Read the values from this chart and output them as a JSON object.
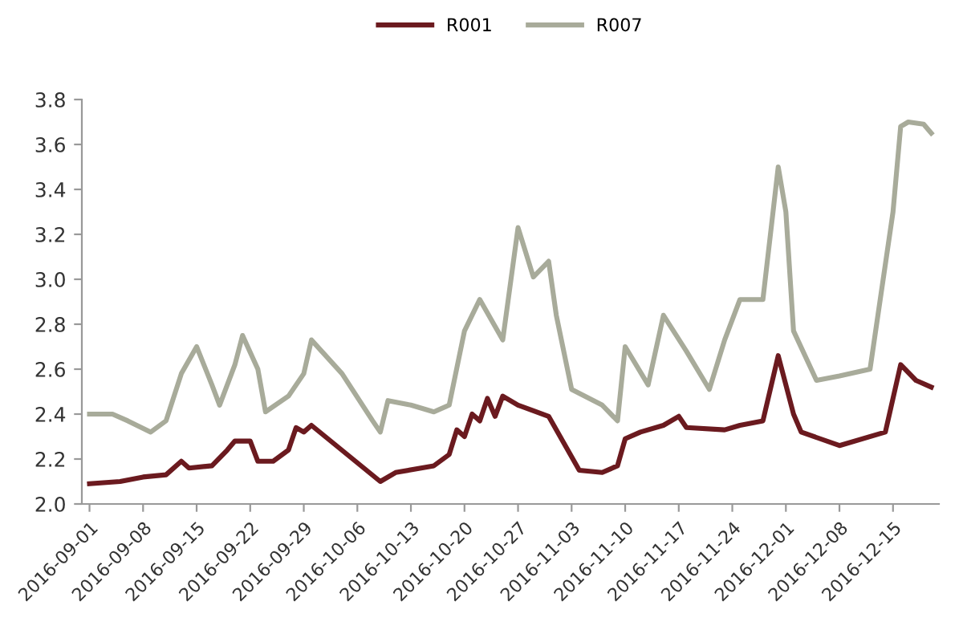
{
  "chart_data": {
    "type": "line",
    "series": [
      {
        "name": "R001",
        "color": "#6b1a1f",
        "x": [
          "2016-09-01",
          "2016-09-05",
          "2016-09-08",
          "2016-09-11",
          "2016-09-13",
          "2016-09-14",
          "2016-09-17",
          "2016-09-19",
          "2016-09-20",
          "2016-09-22",
          "2016-09-23",
          "2016-09-25",
          "2016-09-27",
          "2016-09-28",
          "2016-09-29",
          "2016-09-30",
          "2016-10-09",
          "2016-10-11",
          "2016-10-16",
          "2016-10-18",
          "2016-10-19",
          "2016-10-20",
          "2016-10-21",
          "2016-10-22",
          "2016-10-23",
          "2016-10-24",
          "2016-10-25",
          "2016-10-27",
          "2016-10-31",
          "2016-11-04",
          "2016-11-07",
          "2016-11-09",
          "2016-11-10",
          "2016-11-12",
          "2016-11-15",
          "2016-11-17",
          "2016-11-18",
          "2016-11-23",
          "2016-11-25",
          "2016-11-28",
          "2016-11-30",
          "2016-12-02",
          "2016-12-03",
          "2016-12-08",
          "2016-12-14",
          "2016-12-16",
          "2016-12-18",
          "2016-12-20"
        ],
        "values": [
          2.09,
          2.1,
          2.12,
          2.13,
          2.19,
          2.16,
          2.17,
          2.24,
          2.28,
          2.28,
          2.19,
          2.19,
          2.24,
          2.34,
          2.32,
          2.35,
          2.1,
          2.14,
          2.17,
          2.22,
          2.33,
          2.3,
          2.4,
          2.37,
          2.47,
          2.39,
          2.48,
          2.44,
          2.39,
          2.15,
          2.14,
          2.17,
          2.29,
          2.32,
          2.35,
          2.39,
          2.34,
          2.33,
          2.35,
          2.37,
          2.66,
          2.4,
          2.32,
          2.26,
          2.32,
          2.62,
          2.55,
          2.52
        ]
      },
      {
        "name": "R007",
        "color": "#a8ab9a",
        "x": [
          "2016-09-01",
          "2016-09-04",
          "2016-09-06",
          "2016-09-09",
          "2016-09-11",
          "2016-09-13",
          "2016-09-15",
          "2016-09-17",
          "2016-09-18",
          "2016-09-20",
          "2016-09-21",
          "2016-09-23",
          "2016-09-24",
          "2016-09-27",
          "2016-09-29",
          "2016-09-30",
          "2016-10-04",
          "2016-10-08",
          "2016-10-09",
          "2016-10-10",
          "2016-10-13",
          "2016-10-16",
          "2016-10-18",
          "2016-10-20",
          "2016-10-22",
          "2016-10-25",
          "2016-10-27",
          "2016-10-29",
          "2016-10-31",
          "2016-11-01",
          "2016-11-03",
          "2016-11-07",
          "2016-11-09",
          "2016-11-10",
          "2016-11-13",
          "2016-11-15",
          "2016-11-18",
          "2016-11-21",
          "2016-11-23",
          "2016-11-25",
          "2016-11-28",
          "2016-11-30",
          "2016-12-01",
          "2016-12-02",
          "2016-12-05",
          "2016-12-08",
          "2016-12-12",
          "2016-12-15",
          "2016-12-16",
          "2016-12-17",
          "2016-12-19",
          "2016-12-20"
        ],
        "values": [
          2.4,
          2.4,
          2.37,
          2.32,
          2.37,
          2.58,
          2.7,
          2.53,
          2.44,
          2.62,
          2.75,
          2.6,
          2.41,
          2.48,
          2.58,
          2.73,
          2.58,
          2.37,
          2.32,
          2.46,
          2.44,
          2.41,
          2.44,
          2.77,
          2.91,
          2.73,
          3.23,
          3.01,
          3.08,
          2.84,
          2.51,
          2.44,
          2.37,
          2.7,
          2.53,
          2.84,
          2.68,
          2.51,
          2.73,
          2.91,
          2.91,
          3.5,
          3.3,
          2.77,
          2.55,
          2.57,
          2.6,
          3.3,
          3.68,
          3.7,
          3.69,
          3.65
        ]
      }
    ],
    "xlim": [
      "2016-08-31",
      "2016-12-21"
    ],
    "xticks": [
      {
        "value": "2016-09-01",
        "label": "2016-09-01"
      },
      {
        "value": "2016-09-08",
        "label": "2016-09-08"
      },
      {
        "value": "2016-09-15",
        "label": "2016-09-15"
      },
      {
        "value": "2016-09-22",
        "label": "2016-09-22"
      },
      {
        "value": "2016-09-29",
        "label": "2016-09-29"
      },
      {
        "value": "2016-10-06",
        "label": "2016-10-06"
      },
      {
        "value": "2016-10-13",
        "label": "2016-10-13"
      },
      {
        "value": "2016-10-20",
        "label": "2016-10-20"
      },
      {
        "value": "2016-10-27",
        "label": "2016-10-27"
      },
      {
        "value": "2016-11-03",
        "label": "2016-11-03"
      },
      {
        "value": "2016-11-10",
        "label": "2016-11-10"
      },
      {
        "value": "2016-11-17",
        "label": "2016-11-17"
      },
      {
        "value": "2016-11-24",
        "label": "2016-11-24"
      },
      {
        "value": "2016-12-01",
        "label": "2016-12-01"
      },
      {
        "value": "2016-12-08",
        "label": "2016-12-08"
      },
      {
        "value": "2016-12-15",
        "label": "2016-12-15"
      }
    ],
    "ylim": [
      2.0,
      3.8
    ],
    "yticks": [
      {
        "value": 2.0,
        "label": "2.0"
      },
      2.2,
      2.4,
      2.6,
      2.8,
      {
        "value": 3.0,
        "label": "3.0"
      },
      3.2,
      3.4,
      3.6,
      3.8
    ],
    "grid": false,
    "legend": "top",
    "marker": "none",
    "line_style": "solid"
  }
}
